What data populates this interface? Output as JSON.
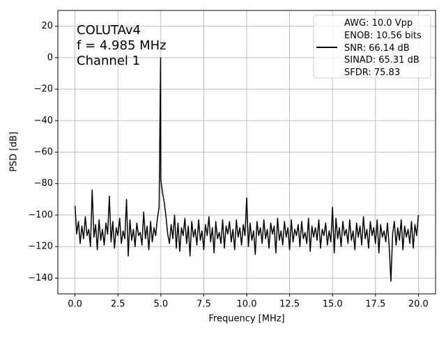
{
  "chart_data": {
    "type": "line",
    "xlabel": "Frequency [MHz]",
    "ylabel": "PSD [dB]",
    "annotations": [
      "COLUTAv4",
      "f = 4.985 MHz",
      "Channel 1"
    ],
    "xlim": [
      -1,
      21
    ],
    "ylim": [
      -150,
      30
    ],
    "xticks": [
      {
        "value": 0,
        "label": "0.0"
      },
      2.5,
      {
        "value": 5,
        "label": "5.0"
      },
      7.5,
      {
        "value": 10,
        "label": "10.0"
      },
      12.5,
      {
        "value": 15,
        "label": "15.0"
      },
      17.5,
      {
        "value": 20,
        "label": "20.0"
      }
    ],
    "yticks": [
      20,
      0,
      {
        "value": -20,
        "label": "−20"
      },
      {
        "value": -40,
        "label": "−40"
      },
      {
        "value": -60,
        "label": "−60"
      },
      {
        "value": -80,
        "label": "−80"
      },
      {
        "value": -100,
        "label": "−100"
      },
      {
        "value": -120,
        "label": "−120"
      },
      {
        "value": -140,
        "label": "−140"
      }
    ],
    "grid": true,
    "legend": "upper right",
    "x": [
      0.0,
      0.1,
      0.2,
      0.3,
      0.4,
      0.5,
      0.6,
      0.7,
      0.8,
      0.9,
      1.0,
      1.1,
      1.2,
      1.3,
      1.4,
      1.5,
      1.6,
      1.7,
      1.8,
      1.9,
      2.0,
      2.1,
      2.2,
      2.3,
      2.4,
      2.5,
      2.6,
      2.7,
      2.8,
      2.9,
      3.0,
      3.1,
      3.2,
      3.3,
      3.4,
      3.5,
      3.6,
      3.7,
      3.8,
      3.9,
      4.0,
      4.1,
      4.2,
      4.3,
      4.4,
      4.5,
      4.6,
      4.7,
      4.8,
      4.9,
      4.985,
      5.0,
      5.1,
      5.2,
      5.3,
      5.4,
      5.5,
      5.6,
      5.7,
      5.8,
      5.9,
      6.0,
      6.1,
      6.2,
      6.3,
      6.4,
      6.5,
      6.6,
      6.7,
      6.8,
      6.9,
      7.0,
      7.1,
      7.2,
      7.3,
      7.4,
      7.5,
      7.6,
      7.7,
      7.8,
      7.9,
      8.0,
      8.1,
      8.2,
      8.3,
      8.4,
      8.5,
      8.6,
      8.7,
      8.8,
      8.9,
      9.0,
      9.1,
      9.2,
      9.3,
      9.4,
      9.5,
      9.6,
      9.7,
      9.8,
      9.9,
      10.0,
      10.1,
      10.2,
      10.3,
      10.4,
      10.5,
      10.6,
      10.7,
      10.8,
      10.9,
      11.0,
      11.1,
      11.2,
      11.3,
      11.4,
      11.5,
      11.6,
      11.7,
      11.8,
      11.9,
      12.0,
      12.1,
      12.2,
      12.3,
      12.4,
      12.5,
      12.6,
      12.7,
      12.8,
      12.9,
      13.0,
      13.1,
      13.2,
      13.3,
      13.4,
      13.5,
      13.6,
      13.7,
      13.8,
      13.9,
      14.0,
      14.1,
      14.2,
      14.3,
      14.4,
      14.5,
      14.6,
      14.7,
      14.8,
      14.9,
      15.0,
      15.1,
      15.2,
      15.3,
      15.4,
      15.5,
      15.6,
      15.7,
      15.8,
      15.9,
      16.0,
      16.1,
      16.2,
      16.3,
      16.4,
      16.5,
      16.6,
      16.7,
      16.8,
      16.9,
      17.0,
      17.1,
      17.2,
      17.3,
      17.4,
      17.5,
      17.6,
      17.7,
      17.8,
      17.9,
      18.0,
      18.1,
      18.2,
      18.3,
      18.4,
      18.5,
      18.6,
      18.7,
      18.8,
      18.9,
      19.0,
      19.1,
      19.2,
      19.3,
      19.4,
      19.5,
      19.6,
      19.7,
      19.8,
      19.9,
      20.0
    ],
    "series": [
      {
        "name": "AWG: 10.0 Vpp\nENOB: 10.56 bits\nSNR: 66.14 dB\nSINAD: 65.31 dB\nSFDR: 75.83",
        "color": "#000000",
        "values": [
          -94,
          -112,
          -104,
          -118,
          -107,
          -115,
          -101,
          -113,
          -109,
          -120,
          -84,
          -114,
          -106,
          -122,
          -103,
          -116,
          -109,
          -119,
          -105,
          -112,
          -88,
          -117,
          -104,
          -121,
          -108,
          -113,
          -102,
          -118,
          -110,
          -115,
          -90,
          -126,
          -103,
          -116,
          -109,
          -120,
          -105,
          -113,
          -111,
          -119,
          -98,
          -115,
          -107,
          -122,
          -104,
          -117,
          -108,
          -113,
          -102,
          -95,
          0,
          -78,
          -86,
          -92,
          -101,
          -112,
          -118,
          -106,
          -115,
          -100,
          -121,
          -105,
          -123,
          -108,
          -113,
          -102,
          -118,
          -107,
          -126,
          -104,
          -114,
          -109,
          -119,
          -103,
          -116,
          -110,
          -122,
          -106,
          -113,
          -101,
          -117,
          -108,
          -124,
          -104,
          -115,
          -111,
          -118,
          -103,
          -121,
          -107,
          -112,
          -104,
          -117,
          -109,
          -122,
          -103,
          -114,
          -108,
          -119,
          -106,
          -113,
          -89,
          -120,
          -105,
          -116,
          -110,
          -125,
          -104,
          -113,
          -108,
          -118,
          -103,
          -115,
          -109,
          -121,
          -105,
          -112,
          -107,
          -124,
          -102,
          -116,
          -110,
          -119,
          -104,
          -114,
          -108,
          -122,
          -103,
          -117,
          -109,
          -113,
          -106,
          -120,
          -104,
          -115,
          -111,
          -118,
          -102,
          -123,
          -107,
          -114,
          -108,
          -116,
          -103,
          -121,
          -109,
          -113,
          -105,
          -119,
          -110,
          -117,
          -95,
          -124,
          -102,
          -115,
          -108,
          -120,
          -104,
          -113,
          -109,
          -118,
          -103,
          -116,
          -110,
          -122,
          -105,
          -114,
          -107,
          -119,
          -101,
          -115,
          -109,
          -121,
          -104,
          -113,
          -108,
          -118,
          -103,
          -124,
          -106,
          -114,
          -110,
          -117,
          -105,
          -120,
          -142,
          -112,
          -104,
          -119,
          -108,
          -116,
          -103,
          -122,
          -107,
          -114,
          -109,
          -118,
          -104,
          -121,
          -106,
          -113,
          -100
        ]
      }
    ]
  }
}
